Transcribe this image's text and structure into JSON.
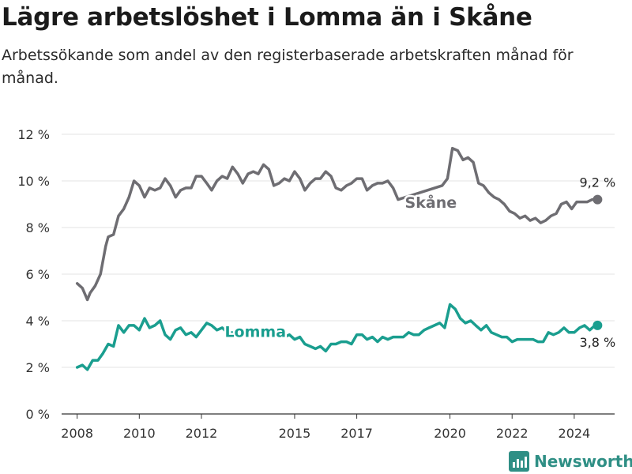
{
  "title": "Lägre arbetslöshet i Lomma än i Skåne",
  "subtitle": "Arbetssökande som andel av den registerbaserade arbetskraften månad för månad.",
  "logo_text": "Newsworthy",
  "colors": {
    "skane": "#6e6d72",
    "lomma": "#1a9e8f",
    "grid": "#e3e3e3",
    "axis": "#333333",
    "logo": "#2f8f85"
  },
  "chart_data": {
    "type": "line",
    "title": "Lägre arbetslöshet i Lomma än i Skåne",
    "subtitle": "Arbetssökande som andel av den registerbaserade arbetskraften månad för månad.",
    "x_unit": "year",
    "xlim": [
      2007.5,
      2025.3
    ],
    "ylim": [
      0,
      12
    ],
    "y_ticks": [
      0,
      2,
      4,
      6,
      8,
      10,
      12
    ],
    "y_tick_labels": [
      "0 %",
      "2 %",
      "4 %",
      "6 %",
      "8 %",
      "10 %",
      "12 %"
    ],
    "x_ticks": [
      2008,
      2010,
      2012,
      2015,
      2017,
      2020,
      2022,
      2024
    ],
    "x_tick_labels": [
      "2008",
      "2010",
      "2012",
      "2015",
      "2017",
      "2020",
      "2022",
      "2024"
    ],
    "grid": "horizontal",
    "series": [
      {
        "name": "Skåne",
        "color": "#6e6d72",
        "end_label": "9,2 %",
        "x": [
          2008.0,
          2008.17,
          2008.33,
          2008.42,
          2008.58,
          2008.75,
          2008.92,
          2009.0,
          2009.17,
          2009.33,
          2009.5,
          2009.67,
          2009.83,
          2010.0,
          2010.17,
          2010.33,
          2010.5,
          2010.67,
          2010.83,
          2011.0,
          2011.17,
          2011.33,
          2011.5,
          2011.67,
          2011.83,
          2012.0,
          2012.17,
          2012.33,
          2012.5,
          2012.67,
          2012.83,
          2013.0,
          2013.17,
          2013.33,
          2013.5,
          2013.67,
          2013.83,
          2014.0,
          2014.17,
          2014.33,
          2014.5,
          2014.67,
          2014.83,
          2015.0,
          2015.17,
          2015.33,
          2015.5,
          2015.67,
          2015.83,
          2016.0,
          2016.17,
          2016.33,
          2016.5,
          2016.67,
          2016.83,
          2017.0,
          2017.17,
          2017.33,
          2017.5,
          2017.67,
          2017.83,
          2018.0,
          2018.17,
          2018.33,
          2019.75,
          2019.92,
          2020.08,
          2020.25,
          2020.42,
          2020.58,
          2020.75,
          2020.92,
          2021.08,
          2021.25,
          2021.42,
          2021.58,
          2021.75,
          2021.92,
          2022.08,
          2022.25,
          2022.42,
          2022.58,
          2022.75,
          2022.92,
          2023.08,
          2023.25,
          2023.42,
          2023.58,
          2023.75,
          2023.92,
          2024.08,
          2024.25,
          2024.42,
          2024.58,
          2024.75
        ],
        "values": [
          5.6,
          5.4,
          4.9,
          5.2,
          5.5,
          6.0,
          7.2,
          7.6,
          7.7,
          8.5,
          8.8,
          9.3,
          10.0,
          9.8,
          9.3,
          9.7,
          9.6,
          9.7,
          10.1,
          9.8,
          9.3,
          9.6,
          9.7,
          9.7,
          10.2,
          10.2,
          9.9,
          9.6,
          10.0,
          10.2,
          10.1,
          10.6,
          10.3,
          9.9,
          10.3,
          10.4,
          10.3,
          10.7,
          10.5,
          9.8,
          9.9,
          10.1,
          10.0,
          10.4,
          10.1,
          9.6,
          9.9,
          10.1,
          10.1,
          10.4,
          10.2,
          9.7,
          9.6,
          9.8,
          9.9,
          10.1,
          10.1,
          9.6,
          9.8,
          9.9,
          9.9,
          10.0,
          9.7,
          9.2,
          9.8,
          10.1,
          11.4,
          11.3,
          10.9,
          11.0,
          10.8,
          9.9,
          9.8,
          9.5,
          9.3,
          9.2,
          9.0,
          8.7,
          8.6,
          8.4,
          8.5,
          8.3,
          8.4,
          8.2,
          8.3,
          8.5,
          8.6,
          9.0,
          9.1,
          8.8,
          9.1,
          9.1,
          9.1,
          9.2,
          9.2
        ]
      },
      {
        "name": "Lomma",
        "color": "#1a9e8f",
        "end_label": "3,8 %",
        "x": [
          2008.0,
          2008.17,
          2008.33,
          2008.5,
          2008.67,
          2008.83,
          2009.0,
          2009.17,
          2009.33,
          2009.5,
          2009.67,
          2009.83,
          2010.0,
          2010.17,
          2010.33,
          2010.5,
          2010.67,
          2010.83,
          2011.0,
          2011.17,
          2011.33,
          2011.5,
          2011.67,
          2011.83,
          2012.0,
          2012.17,
          2012.33,
          2012.5,
          2012.67,
          2012.83,
          2014.33,
          2014.5,
          2014.67,
          2014.83,
          2015.0,
          2015.17,
          2015.33,
          2015.5,
          2015.67,
          2015.83,
          2016.0,
          2016.17,
          2016.33,
          2016.5,
          2016.67,
          2016.83,
          2017.0,
          2017.17,
          2017.33,
          2017.5,
          2017.67,
          2017.83,
          2018.0,
          2018.17,
          2018.33,
          2018.5,
          2018.67,
          2018.83,
          2019.0,
          2019.17,
          2019.33,
          2019.5,
          2019.67,
          2019.83,
          2020.0,
          2020.17,
          2020.33,
          2020.5,
          2020.67,
          2020.83,
          2021.0,
          2021.17,
          2021.33,
          2021.5,
          2021.67,
          2021.83,
          2022.0,
          2022.17,
          2022.33,
          2022.5,
          2022.67,
          2022.83,
          2023.0,
          2023.17,
          2023.33,
          2023.5,
          2023.67,
          2023.83,
          2024.0,
          2024.17,
          2024.33,
          2024.5,
          2024.67,
          2024.75
        ],
        "values": [
          2.0,
          2.1,
          1.9,
          2.3,
          2.3,
          2.6,
          3.0,
          2.9,
          3.8,
          3.5,
          3.8,
          3.8,
          3.6,
          4.1,
          3.7,
          3.8,
          4.0,
          3.4,
          3.2,
          3.6,
          3.7,
          3.4,
          3.5,
          3.3,
          3.6,
          3.9,
          3.8,
          3.6,
          3.7,
          3.5,
          3.4,
          3.5,
          3.3,
          3.4,
          3.2,
          3.3,
          3.0,
          2.9,
          2.8,
          2.9,
          2.7,
          3.0,
          3.0,
          3.1,
          3.1,
          3.0,
          3.4,
          3.4,
          3.2,
          3.3,
          3.1,
          3.3,
          3.2,
          3.3,
          3.3,
          3.3,
          3.5,
          3.4,
          3.4,
          3.6,
          3.7,
          3.8,
          3.9,
          3.7,
          4.7,
          4.5,
          4.1,
          3.9,
          4.0,
          3.8,
          3.6,
          3.8,
          3.5,
          3.4,
          3.3,
          3.3,
          3.1,
          3.2,
          3.2,
          3.2,
          3.2,
          3.1,
          3.1,
          3.5,
          3.4,
          3.5,
          3.7,
          3.5,
          3.5,
          3.7,
          3.8,
          3.6,
          3.8,
          3.8
        ]
      }
    ]
  }
}
